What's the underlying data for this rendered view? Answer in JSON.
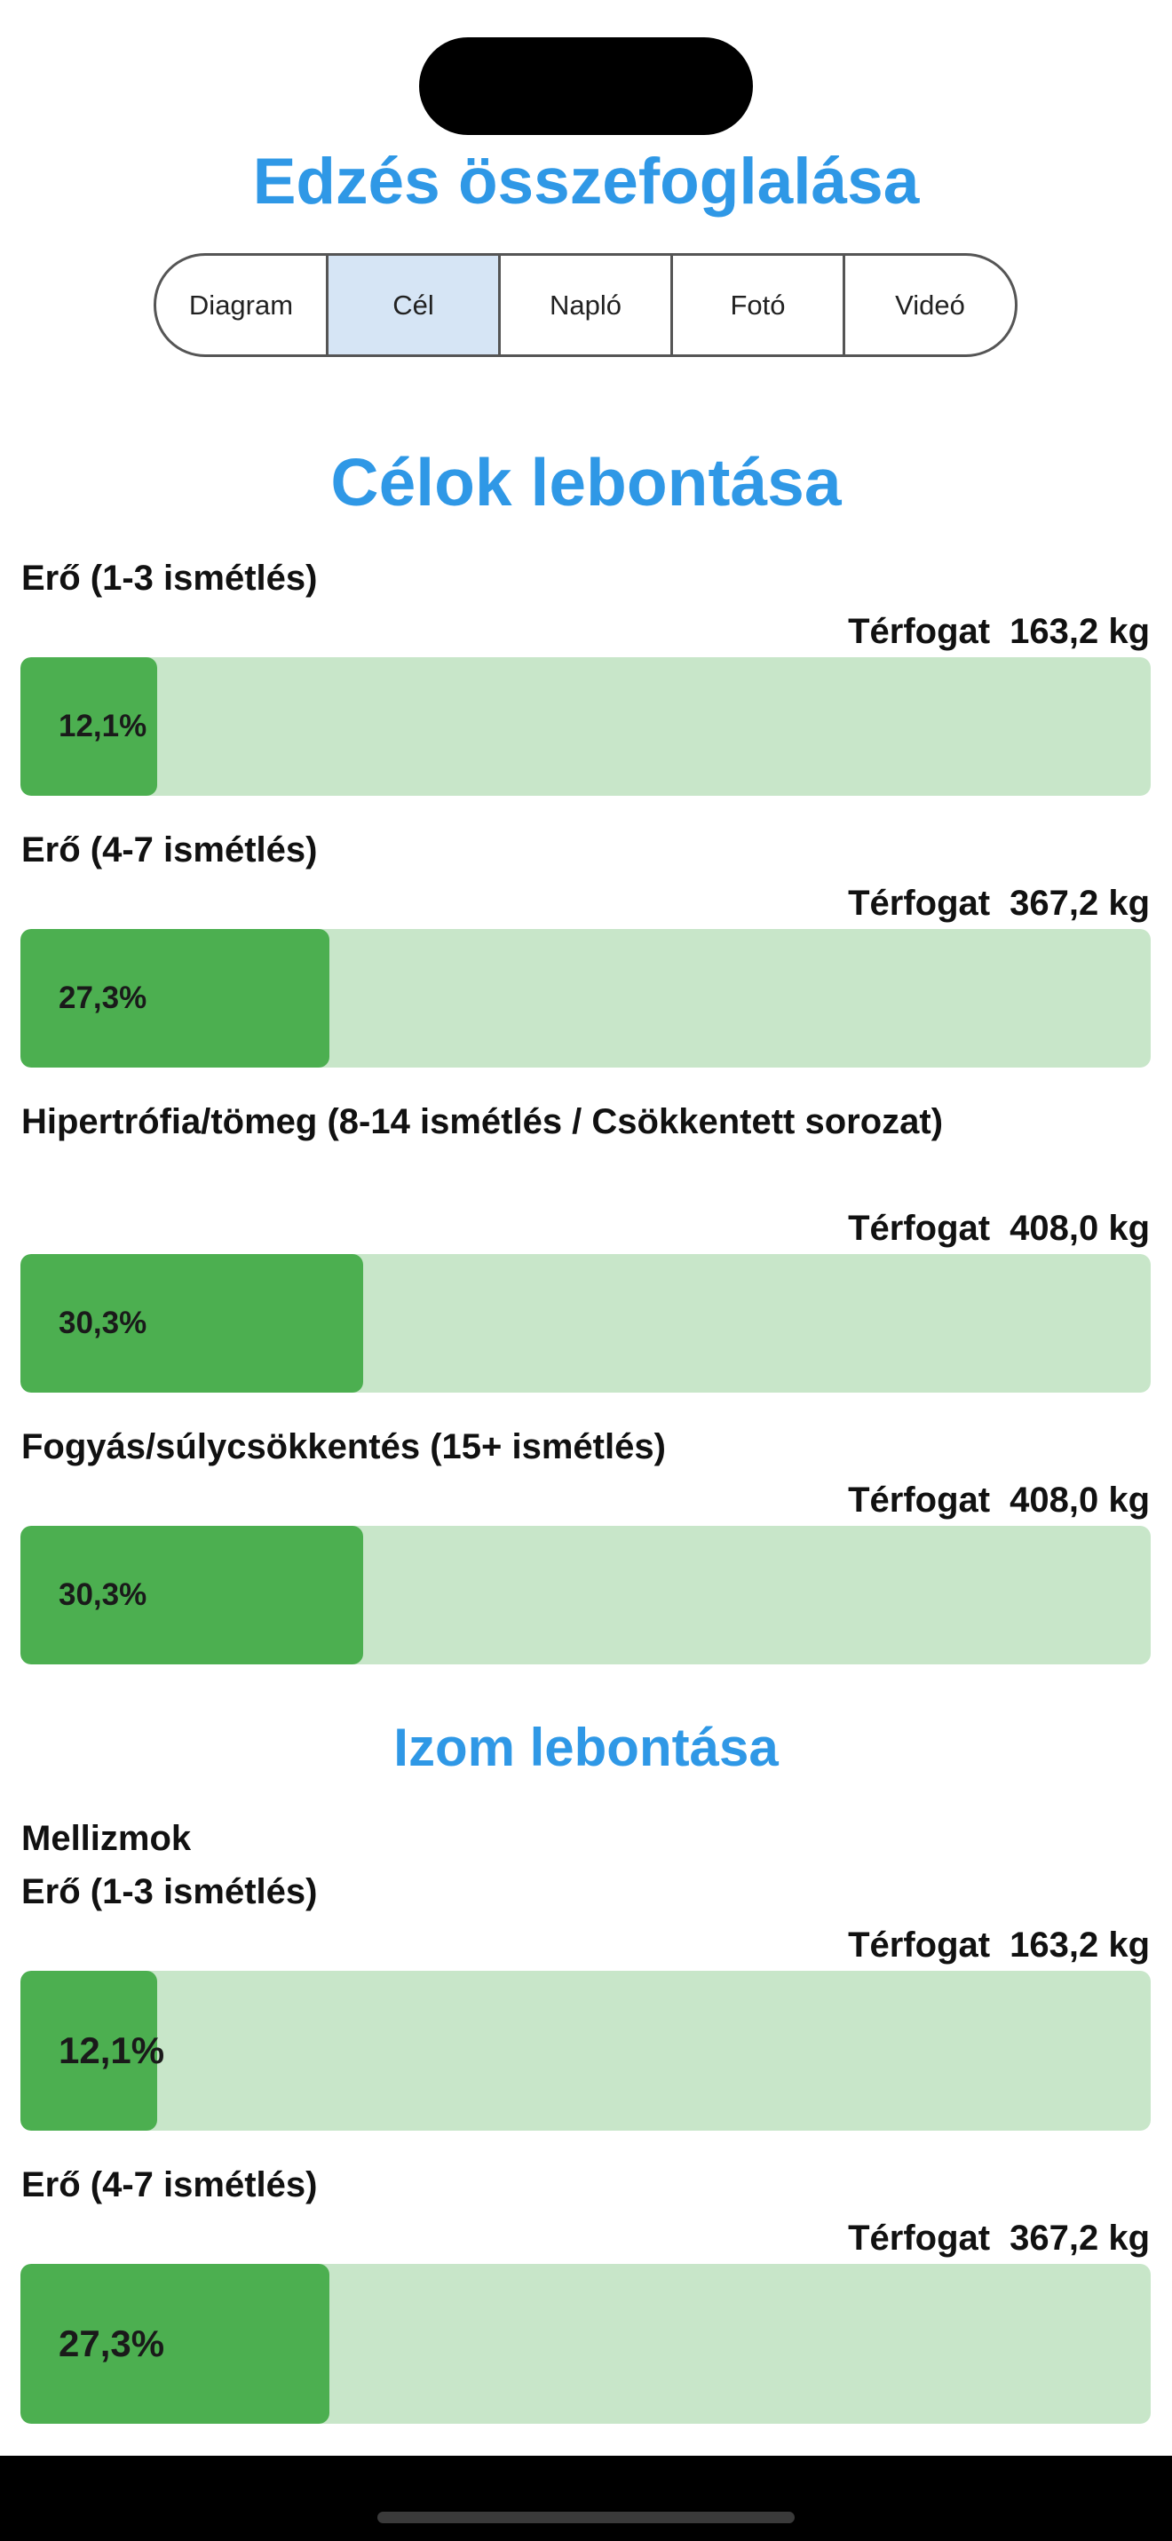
{
  "header": {
    "title": "Edzés összefoglalása"
  },
  "tabs": [
    {
      "label": "Diagram",
      "active": false
    },
    {
      "label": "Cél",
      "active": true
    },
    {
      "label": "Napló",
      "active": false
    },
    {
      "label": "Fotó",
      "active": false
    },
    {
      "label": "Videó",
      "active": false
    }
  ],
  "goals": {
    "title": "Célok lebontása",
    "items": [
      {
        "label": "Erő (1-3 ismétlés)",
        "volume_label": "Térfogat",
        "volume_value": "163,2 kg",
        "percent": 12.1,
        "percent_text": "12,1%"
      },
      {
        "label": "Erő (4-7 ismétlés)",
        "volume_label": "Térfogat",
        "volume_value": "367,2 kg",
        "percent": 27.3,
        "percent_text": "27,3%"
      },
      {
        "label": "Hipertrófia/tömeg (8-14 ismétlés / Csökkentett sorozat)",
        "volume_label": "Térfogat",
        "volume_value": "408,0 kg",
        "percent": 30.3,
        "percent_text": "30,3%"
      },
      {
        "label": "Fogyás/súlycsökkentés (15+ ismétlés)",
        "volume_label": "Térfogat",
        "volume_value": "408,0 kg",
        "percent": 30.3,
        "percent_text": "30,3%"
      }
    ]
  },
  "muscles": {
    "title": "Izom lebontása",
    "groups": [
      {
        "name": "Mellizmok",
        "items": [
          {
            "label": "Erő (1-3 ismétlés)",
            "volume_label": "Térfogat",
            "volume_value": "163,2 kg",
            "percent": 12.1,
            "percent_text": "12,1%"
          },
          {
            "label": "Erő (4-7 ismétlés)",
            "volume_label": "Térfogat",
            "volume_value": "367,2 kg",
            "percent": 27.3,
            "percent_text": "27,3%"
          }
        ]
      }
    ]
  },
  "colors": {
    "accent": "#2f98e6",
    "bar_fill": "#4caf50",
    "bar_track": "#c8e6c9",
    "tab_active_bg": "#d6e5f5"
  }
}
